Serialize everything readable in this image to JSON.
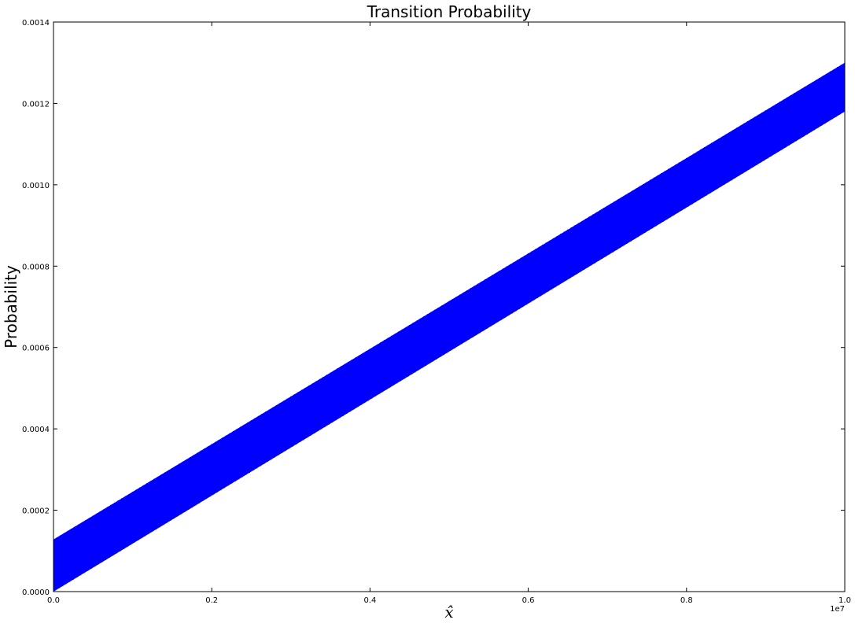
{
  "chart_data": {
    "type": "line",
    "title": "Transition Probability",
    "xlabel": "x̂",
    "ylabel": "Probability",
    "x_offset_label": "1e7",
    "xlim": [
      0,
      10000000
    ],
    "ylim": [
      0,
      0.0014
    ],
    "x_ticks": [
      0,
      2000000,
      4000000,
      6000000,
      8000000,
      10000000
    ],
    "x_tick_labels": [
      "0.0",
      "0.2",
      "0.4",
      "0.6",
      "0.8",
      "1.0"
    ],
    "y_ticks": [
      0,
      0.0002,
      0.0004,
      0.0006,
      0.0008,
      0.001,
      0.0012,
      0.0014
    ],
    "y_tick_labels": [
      "0.0000",
      "0.0002",
      "0.0004",
      "0.0006",
      "0.0008",
      "0.0010",
      "0.0012",
      "0.0014"
    ],
    "grid": false,
    "color": "#0000ff",
    "series": [
      {
        "description_band": "oscillating probability filling a band",
        "upper_envelope": {
          "x": [
            0,
            10000000
          ],
          "y": [
            0.000128,
            0.0013
          ]
        },
        "lower_envelope": {
          "x": [
            0,
            10000000
          ],
          "y": [
            0.0,
            0.00118
          ]
        }
      }
    ]
  }
}
